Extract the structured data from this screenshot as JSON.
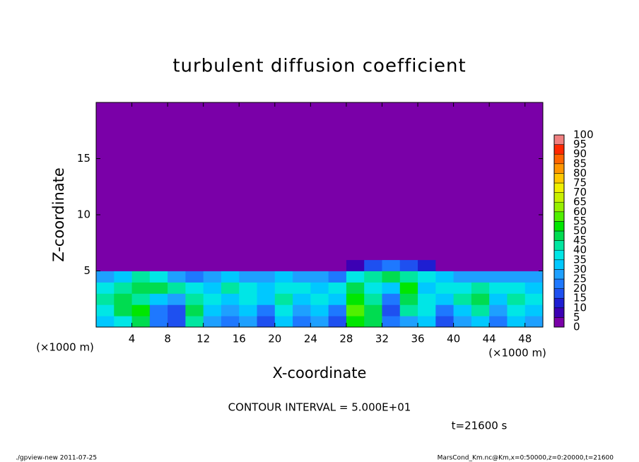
{
  "chart_data": {
    "type": "heatmap",
    "title": "turbulent diffusion coefficient",
    "xlabel": "X-coordinate",
    "ylabel": "Z-coordinate",
    "x_unit": "(×1000 m)",
    "xbins": [
      0,
      2,
      4,
      6,
      8,
      10,
      12,
      14,
      16,
      18,
      20,
      22,
      24,
      26,
      28,
      30,
      32,
      34,
      36,
      38,
      40,
      42,
      44,
      46,
      48,
      50
    ],
    "ybins": [
      0,
      1,
      2,
      3,
      4,
      5,
      6,
      20
    ],
    "values": [
      [
        30,
        35,
        45,
        20,
        15,
        40,
        25,
        20,
        25,
        15,
        30,
        20,
        25,
        15,
        50,
        45,
        20,
        25,
        30,
        15,
        25,
        30,
        20,
        30,
        25
      ],
      [
        35,
        45,
        50,
        20,
        15,
        45,
        30,
        25,
        30,
        20,
        35,
        25,
        30,
        20,
        55,
        45,
        15,
        40,
        35,
        20,
        30,
        40,
        25,
        35,
        30
      ],
      [
        40,
        45,
        40,
        30,
        25,
        40,
        35,
        30,
        35,
        30,
        40,
        30,
        35,
        30,
        50,
        40,
        20,
        45,
        35,
        30,
        40,
        45,
        30,
        40,
        35
      ],
      [
        35,
        40,
        45,
        45,
        40,
        35,
        30,
        40,
        35,
        30,
        35,
        35,
        30,
        35,
        45,
        35,
        30,
        50,
        30,
        35,
        35,
        40,
        35,
        35,
        30
      ],
      [
        25,
        30,
        40,
        35,
        25,
        20,
        25,
        30,
        25,
        25,
        30,
        25,
        25,
        20,
        35,
        40,
        45,
        40,
        35,
        30,
        25,
        25,
        25,
        25,
        25
      ],
      [
        0,
        0,
        0,
        0,
        0,
        0,
        0,
        0,
        0,
        0,
        0,
        0,
        0,
        0,
        5,
        15,
        20,
        15,
        10,
        0,
        0,
        0,
        0,
        0,
        0
      ],
      [
        0,
        0,
        0,
        0,
        0,
        0,
        0,
        0,
        0,
        0,
        0,
        0,
        0,
        0,
        0,
        0,
        0,
        0,
        0,
        0,
        0,
        0,
        0,
        0,
        0
      ]
    ],
    "xlim": [
      0,
      50
    ],
    "xticks": [
      4,
      8,
      12,
      16,
      20,
      24,
      28,
      32,
      36,
      40,
      44,
      48
    ],
    "ylim": [
      0,
      20
    ],
    "yticks": [
      5,
      10,
      15
    ],
    "colorbar": {
      "levels": [
        0,
        5,
        10,
        15,
        20,
        25,
        30,
        35,
        40,
        45,
        50,
        55,
        60,
        65,
        70,
        75,
        80,
        85,
        90,
        95,
        100
      ],
      "colors": [
        "#7a00a8",
        "#3c00b4",
        "#1e1ed2",
        "#1e50f0",
        "#1e78ff",
        "#1ea0ff",
        "#00c8ff",
        "#00e6e6",
        "#00e6a0",
        "#00dc50",
        "#00e600",
        "#50f000",
        "#96f000",
        "#c8f000",
        "#f0f000",
        "#ffc800",
        "#ff9600",
        "#ff6400",
        "#ff2800",
        "#f08080"
      ]
    },
    "contour_interval": "CONTOUR INTERVAL = 5.000E+01",
    "time": "t=21600 s",
    "footer_left": "./gpview-new  2011-07-25",
    "footer_right": "MarsCond_Km.nc@Km,x=0:50000,z=0:20000,t=21600"
  }
}
